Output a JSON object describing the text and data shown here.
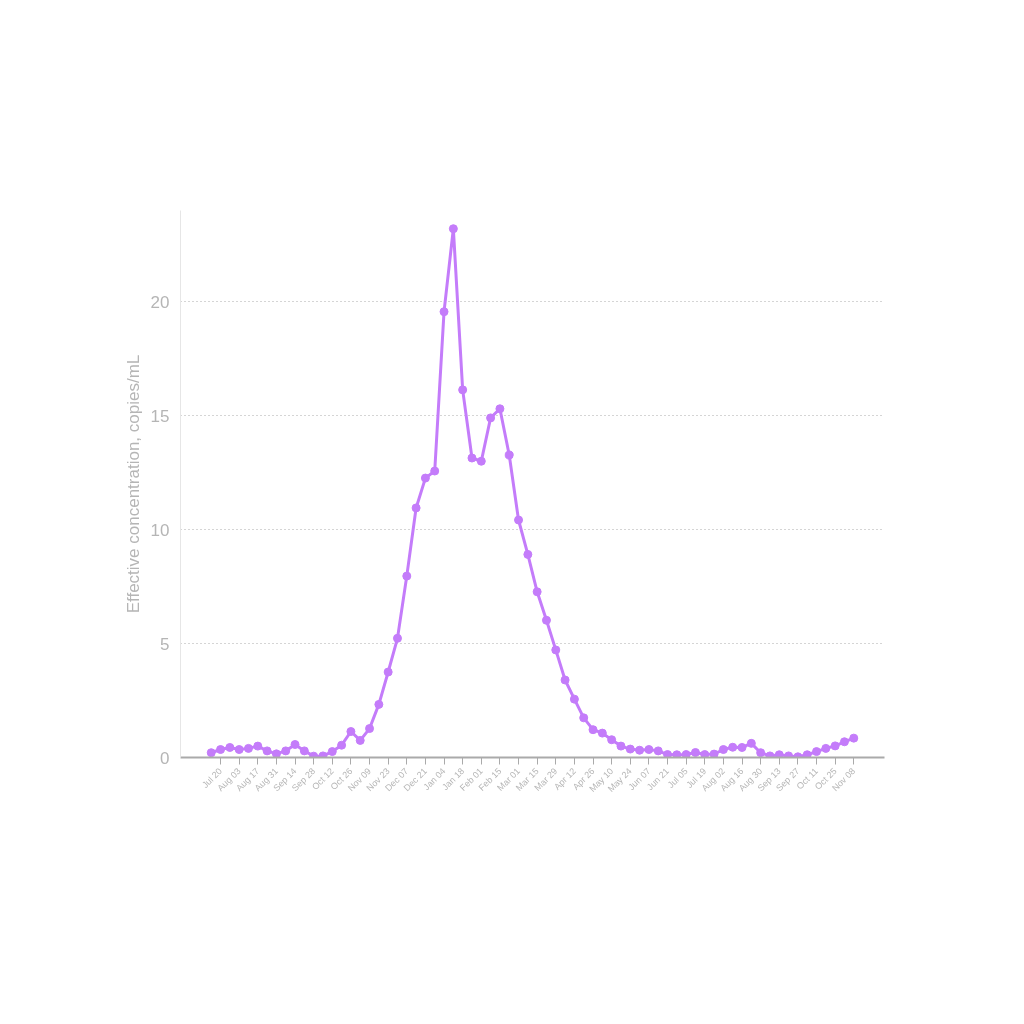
{
  "chart_data": {
    "type": "line",
    "ylabel": "Effective concentration, copies/mL",
    "categories": [
      null,
      "Jul 20",
      null,
      "Aug 03",
      null,
      "Aug 17",
      null,
      "Aug 31",
      null,
      "Sep 14",
      null,
      "Sep 28",
      null,
      "Oct 12",
      null,
      "Oct 26",
      null,
      "Nov 09",
      null,
      "Nov 23",
      null,
      "Dec 07",
      null,
      "Dec 21",
      null,
      "Jan 04",
      null,
      "Jan 18",
      null,
      "Feb 01",
      null,
      "Feb 15",
      null,
      "Mar 01",
      null,
      "Mar 15",
      null,
      "Mar 29",
      null,
      "Apr 12",
      null,
      "Apr 26",
      null,
      "May 10",
      null,
      "May 24",
      null,
      "Jun 07",
      null,
      "Jun 21",
      null,
      "Jul 05",
      null,
      "Jul 19",
      null,
      "Aug 02",
      null,
      "Aug 16",
      null,
      "Aug 30",
      null,
      "Sep 13",
      null,
      "Sep 27",
      null,
      "Oct 11",
      null,
      "Oct 25",
      null,
      "Nov 08"
    ],
    "series": [
      {
        "color": "#c47cfa",
        "values": [
          0.21,
          0.35,
          0.44,
          0.35,
          0.4,
          0.5,
          0.29,
          0.16,
          0.29,
          0.57,
          0.29,
          0.06,
          0.07,
          0.26,
          0.54,
          1.14,
          0.75,
          1.27,
          2.33,
          3.75,
          5.23,
          7.96,
          10.95,
          12.26,
          12.57,
          19.56,
          23.2,
          16.13,
          13.14,
          13.0,
          14.9,
          15.3,
          13.27,
          10.42,
          8.91,
          7.27,
          6.02,
          4.72,
          3.4,
          2.56,
          1.74,
          1.22,
          1.07,
          0.78,
          0.5,
          0.37,
          0.32,
          0.35,
          0.29,
          0.13,
          0.12,
          0.13,
          0.22,
          0.13,
          0.15,
          0.35,
          0.45,
          0.44,
          0.62,
          0.21,
          0.07,
          0.12,
          0.07,
          0.03,
          0.12,
          0.26,
          0.4,
          0.51,
          0.69,
          0.85
        ]
      }
    ],
    "ylim": [
      0,
      24
    ],
    "yticks": [
      0,
      5,
      10,
      15,
      20
    ],
    "grid": "y",
    "marker": "circle",
    "line_style": "solid"
  }
}
